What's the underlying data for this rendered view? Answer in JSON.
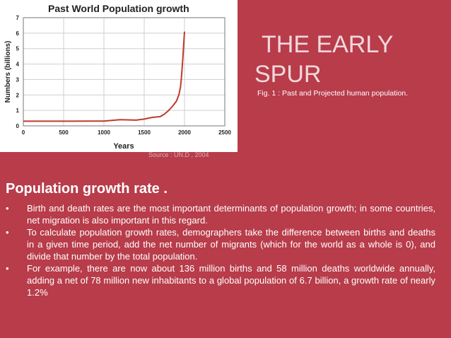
{
  "chart_data": {
    "type": "line",
    "title": "Past World Population growth",
    "xlabel": "Years",
    "ylabel": "Numbers (billions)",
    "xlim": [
      0,
      2500
    ],
    "ylim": [
      0,
      7
    ],
    "x_ticks": [
      0,
      500,
      1000,
      1500,
      2000,
      2500
    ],
    "y_ticks": [
      0,
      1,
      2,
      3,
      4,
      5,
      6,
      7
    ],
    "grid": true,
    "line_color": "#c0392b",
    "x": [
      0,
      200,
      400,
      600,
      800,
      1000,
      1200,
      1400,
      1500,
      1600,
      1700,
      1750,
      1800,
      1850,
      1900,
      1930,
      1950,
      1960,
      1970,
      1980,
      1990,
      2000
    ],
    "y": [
      0.3,
      0.3,
      0.3,
      0.3,
      0.31,
      0.31,
      0.4,
      0.37,
      0.44,
      0.55,
      0.6,
      0.76,
      0.98,
      1.26,
      1.6,
      2.0,
      2.5,
      3.0,
      3.7,
      4.4,
      5.3,
      6.1
    ]
  },
  "source_note": "Source : UN.D , 2004",
  "title_line1": "THE EARLY",
  "title_line2": "SPUR",
  "fig_caption": "Fig. 1 :  Past and Projected human population.",
  "heading": "Population growth rate .",
  "bullets": [
    "Birth and death rates are the most important determinants of population growth; in some countries, net migration is also important in this regard.",
    "To calculate population growth rates, demographers take the difference between births and deaths in a given time period, add the net number of migrants (which for the world as a whole is 0), and divide that number by the total population.",
    "For example, there are now about 136 million births and 58 million deaths worldwide annually, adding a net of 78 million new inhabitants to a global population of 6.7 billion, a growth rate of nearly 1.2%"
  ],
  "bullet_char": "•",
  "colors": {
    "background": "#b83c4a",
    "text": "#ffffff",
    "title": "#f2d8dc"
  }
}
